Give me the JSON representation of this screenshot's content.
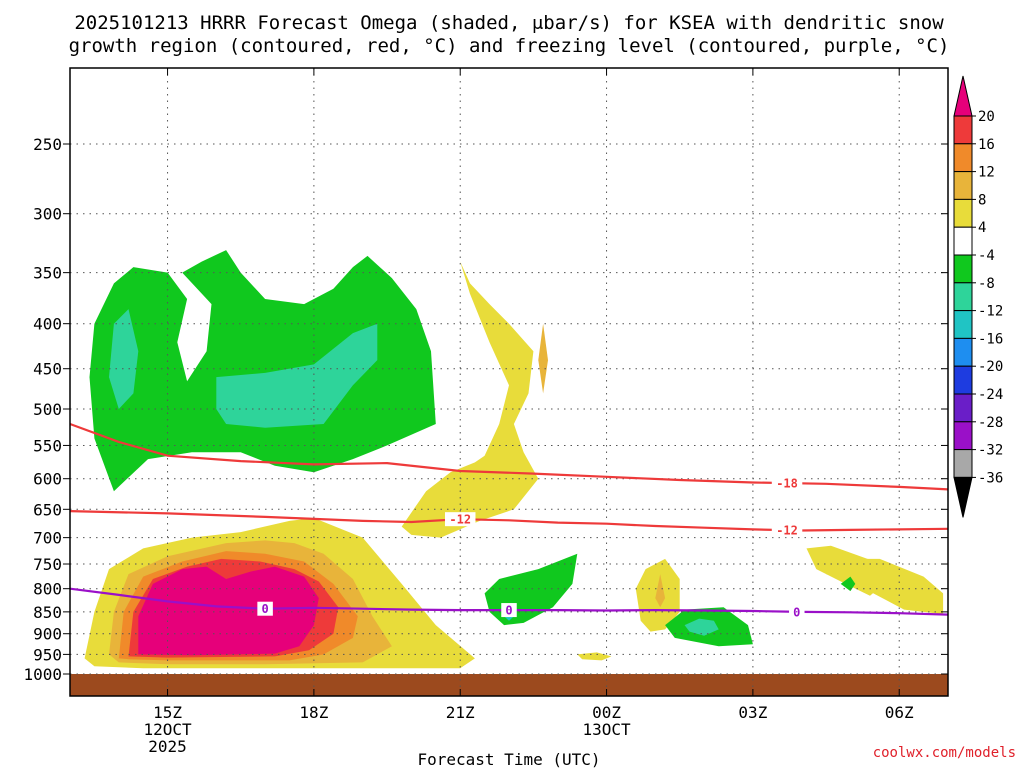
{
  "chart_data": {
    "type": "time-height contour",
    "title_lines": [
      "2025101213 HRRR Forecast Omega (shaded, μbar/s) for KSEA with dendritic snow",
      "growth region (contoured, red, °C) and freezing level (contoured, purple, °C)"
    ],
    "xlabel": "Forecast Time (UTC)",
    "x_ticks": [
      {
        "t": 15,
        "lines": [
          "15Z",
          "12OCT",
          "2025"
        ]
      },
      {
        "t": 18,
        "lines": [
          "18Z"
        ]
      },
      {
        "t": 21,
        "lines": [
          "21Z"
        ]
      },
      {
        "t": 24,
        "lines": [
          "00Z",
          "13OCT"
        ]
      },
      {
        "t": 27,
        "lines": [
          "03Z"
        ]
      },
      {
        "t": 30,
        "lines": [
          "06Z"
        ]
      }
    ],
    "xlim": [
      13.0,
      31.0
    ],
    "y_scale": "log pressure (hPa), inverted",
    "ylim": [
      1000,
      200
    ],
    "y_ticks": [
      250,
      300,
      350,
      400,
      450,
      500,
      550,
      600,
      650,
      700,
      750,
      800,
      850,
      900,
      950,
      1000
    ],
    "colorbar": {
      "label_values": [
        "20",
        "16",
        "12",
        "8",
        "4",
        "-4",
        "-8",
        "-12",
        "-16",
        "-20",
        "-24",
        "-28",
        "-32",
        "-36"
      ],
      "colors": [
        "#e6007a",
        "#ee3a3a",
        "#f08a2a",
        "#e8b43a",
        "#e8dc3a",
        "#ffffff",
        "#10c81e",
        "#2ed49a",
        "#20c4c4",
        "#1e8ef0",
        "#1e3ce0",
        "#6a1ec8",
        "#9a10c8",
        "#a8a8a8",
        "#000000"
      ]
    },
    "shaded_regions": [
      {
        "value": 4,
        "color": "#e8dc3a",
        "polygon": [
          [
            13.3,
            960
          ],
          [
            13.5,
            850
          ],
          [
            13.8,
            760
          ],
          [
            14.5,
            720
          ],
          [
            15.5,
            700
          ],
          [
            16.5,
            690
          ],
          [
            17.5,
            670
          ],
          [
            18.0,
            665
          ],
          [
            19.0,
            700
          ],
          [
            19.8,
            790
          ],
          [
            20.5,
            880
          ],
          [
            21.3,
            960
          ],
          [
            21.0,
            985
          ],
          [
            17.0,
            985
          ],
          [
            14.5,
            985
          ],
          [
            13.5,
            980
          ]
        ]
      },
      {
        "value": 4,
        "color": "#e8dc3a",
        "polygon": [
          [
            19.8,
            680
          ],
          [
            20.3,
            620
          ],
          [
            20.8,
            590
          ],
          [
            21.3,
            575
          ],
          [
            21.5,
            565
          ],
          [
            21.8,
            520
          ],
          [
            22.0,
            470
          ],
          [
            21.6,
            420
          ],
          [
            21.2,
            370
          ],
          [
            21.0,
            340
          ],
          [
            21.2,
            360
          ],
          [
            21.6,
            380
          ],
          [
            22.0,
            400
          ],
          [
            22.5,
            430
          ],
          [
            22.4,
            480
          ],
          [
            22.1,
            520
          ],
          [
            22.3,
            560
          ],
          [
            22.6,
            600
          ],
          [
            22.1,
            650
          ],
          [
            21.4,
            670
          ],
          [
            20.6,
            700
          ],
          [
            20.0,
            695
          ]
        ]
      },
      {
        "value": 4,
        "color": "#e8dc3a",
        "polygon": [
          [
            24.7,
            870
          ],
          [
            24.6,
            800
          ],
          [
            24.8,
            760
          ],
          [
            25.2,
            740
          ],
          [
            25.5,
            780
          ],
          [
            25.5,
            850
          ],
          [
            25.2,
            890
          ],
          [
            24.9,
            895
          ]
        ]
      },
      {
        "value": 4,
        "color": "#e8dc3a",
        "polygon": [
          [
            28.5,
            770
          ],
          [
            29.0,
            740
          ],
          [
            29.6,
            740
          ],
          [
            30.5,
            775
          ],
          [
            30.9,
            810
          ],
          [
            30.9,
            855
          ],
          [
            30.1,
            845
          ],
          [
            29.1,
            790
          ]
        ]
      },
      {
        "value": 4,
        "color": "#e8dc3a",
        "polygon": [
          [
            28.3,
            760
          ],
          [
            28.1,
            720
          ],
          [
            28.6,
            715
          ],
          [
            29.5,
            745
          ],
          [
            29.8,
            780
          ],
          [
            29.4,
            815
          ],
          [
            28.9,
            790
          ]
        ]
      },
      {
        "value": 4,
        "color": "#e8dc3a",
        "polygon": [
          [
            23.4,
            950
          ],
          [
            23.8,
            945
          ],
          [
            24.1,
            955
          ],
          [
            23.9,
            965
          ],
          [
            23.5,
            962
          ]
        ]
      },
      {
        "value": 8,
        "color": "#e8b43a",
        "polygon": [
          [
            13.8,
            950
          ],
          [
            13.9,
            850
          ],
          [
            14.2,
            770
          ],
          [
            15.0,
            735
          ],
          [
            16.2,
            710
          ],
          [
            17.0,
            705
          ],
          [
            17.6,
            710
          ],
          [
            18.2,
            730
          ],
          [
            18.8,
            780
          ],
          [
            19.2,
            860
          ],
          [
            19.6,
            930
          ],
          [
            19.0,
            970
          ],
          [
            17.0,
            975
          ],
          [
            15.0,
            975
          ],
          [
            14.0,
            970
          ]
        ]
      },
      {
        "value": 8,
        "color": "#e8b43a",
        "polygon": [
          [
            22.6,
            440
          ],
          [
            22.7,
            400
          ],
          [
            22.8,
            440
          ],
          [
            22.7,
            480
          ]
        ]
      },
      {
        "value": 8,
        "color": "#e8b43a",
        "polygon": [
          [
            25.0,
            820
          ],
          [
            25.1,
            770
          ],
          [
            25.2,
            820
          ],
          [
            25.1,
            840
          ]
        ]
      },
      {
        "value": 12,
        "color": "#f08a2a",
        "polygon": [
          [
            14.0,
            960
          ],
          [
            14.1,
            850
          ],
          [
            14.5,
            775
          ],
          [
            15.3,
            745
          ],
          [
            16.2,
            725
          ],
          [
            17.0,
            730
          ],
          [
            17.8,
            745
          ],
          [
            18.4,
            790
          ],
          [
            18.9,
            860
          ],
          [
            18.8,
            910
          ],
          [
            18.2,
            950
          ],
          [
            17.5,
            965
          ],
          [
            15.0,
            965
          ],
          [
            14.2,
            962
          ]
        ]
      },
      {
        "value": 16,
        "color": "#ee3a3a",
        "polygon": [
          [
            14.2,
            955
          ],
          [
            14.3,
            850
          ],
          [
            14.7,
            780
          ],
          [
            15.4,
            755
          ],
          [
            16.1,
            740
          ],
          [
            16.9,
            745
          ],
          [
            17.6,
            760
          ],
          [
            18.1,
            785
          ],
          [
            18.5,
            840
          ],
          [
            18.4,
            900
          ],
          [
            17.9,
            940
          ],
          [
            17.2,
            955
          ],
          [
            15.0,
            958
          ]
        ]
      },
      {
        "value": 20,
        "color": "#e6007a",
        "polygon": [
          [
            14.4,
            950
          ],
          [
            14.4,
            860
          ],
          [
            14.7,
            790
          ],
          [
            15.3,
            760
          ],
          [
            15.8,
            755
          ],
          [
            16.2,
            780
          ],
          [
            16.7,
            765
          ],
          [
            17.2,
            755
          ],
          [
            17.8,
            775
          ],
          [
            18.1,
            820
          ],
          [
            18.0,
            880
          ],
          [
            17.7,
            930
          ],
          [
            17.2,
            948
          ],
          [
            15.5,
            952
          ]
        ]
      },
      {
        "value": -4,
        "color": "#10c81e",
        "polygon": [
          [
            13.9,
            620
          ],
          [
            13.5,
            540
          ],
          [
            13.4,
            460
          ],
          [
            13.5,
            400
          ],
          [
            13.9,
            360
          ],
          [
            14.3,
            345
          ],
          [
            15.0,
            350
          ],
          [
            15.4,
            375
          ],
          [
            15.2,
            420
          ],
          [
            15.4,
            465
          ],
          [
            15.8,
            430
          ],
          [
            15.9,
            380
          ],
          [
            15.3,
            350
          ],
          [
            15.7,
            340
          ],
          [
            16.2,
            330
          ],
          [
            16.5,
            350
          ],
          [
            17.0,
            375
          ],
          [
            17.8,
            380
          ],
          [
            18.4,
            365
          ],
          [
            18.8,
            345
          ],
          [
            19.1,
            335
          ],
          [
            19.6,
            355
          ],
          [
            20.1,
            385
          ],
          [
            20.4,
            430
          ],
          [
            20.5,
            520
          ],
          [
            19.5,
            550
          ],
          [
            18.8,
            570
          ],
          [
            18.0,
            590
          ],
          [
            17.2,
            580
          ],
          [
            16.5,
            560
          ],
          [
            15.5,
            560
          ],
          [
            14.6,
            570
          ]
        ]
      },
      {
        "value": -4,
        "color": "#10c81e",
        "polygon": [
          [
            21.6,
            850
          ],
          [
            21.5,
            810
          ],
          [
            21.8,
            780
          ],
          [
            22.6,
            760
          ],
          [
            23.4,
            730
          ],
          [
            23.3,
            790
          ],
          [
            22.9,
            840
          ],
          [
            22.3,
            875
          ],
          [
            21.9,
            880
          ]
        ]
      },
      {
        "value": -4,
        "color": "#10c81e",
        "polygon": [
          [
            25.2,
            880
          ],
          [
            25.6,
            845
          ],
          [
            26.4,
            840
          ],
          [
            26.9,
            880
          ],
          [
            27.0,
            925
          ],
          [
            26.3,
            930
          ],
          [
            25.4,
            910
          ]
        ]
      },
      {
        "value": -4,
        "color": "#10c81e",
        "polygon": [
          [
            28.8,
            790
          ],
          [
            29.0,
            775
          ],
          [
            29.1,
            790
          ],
          [
            29.0,
            805
          ]
        ]
      },
      {
        "value": -8,
        "color": "#2ed49a",
        "polygon": [
          [
            13.8,
            460
          ],
          [
            13.9,
            400
          ],
          [
            14.2,
            385
          ],
          [
            14.4,
            430
          ],
          [
            14.3,
            480
          ],
          [
            14.0,
            500
          ]
        ]
      },
      {
        "value": -8,
        "color": "#2ed49a",
        "polygon": [
          [
            16.0,
            500
          ],
          [
            16.0,
            460
          ],
          [
            17.0,
            455
          ],
          [
            18.0,
            445
          ],
          [
            18.8,
            410
          ],
          [
            19.3,
            400
          ],
          [
            19.3,
            440
          ],
          [
            18.8,
            470
          ],
          [
            18.2,
            520
          ],
          [
            17.0,
            525
          ],
          [
            16.2,
            520
          ]
        ]
      },
      {
        "value": -8,
        "color": "#2ed49a",
        "polygon": [
          [
            25.6,
            880
          ],
          [
            25.9,
            865
          ],
          [
            26.2,
            870
          ],
          [
            26.3,
            890
          ],
          [
            26.0,
            905
          ],
          [
            25.7,
            895
          ]
        ]
      },
      {
        "value": -12,
        "color": "#20c4c4",
        "polygon": [
          [
            21.9,
            860
          ],
          [
            22.0,
            850
          ],
          [
            22.1,
            860
          ],
          [
            22.0,
            870
          ]
        ]
      }
    ],
    "contours": [
      {
        "name": "DGZ -18 °C",
        "color": "#ee3a3a",
        "label": "-18",
        "label_at_t": 27.7,
        "points": [
          [
            13.0,
            520
          ],
          [
            14.0,
            545
          ],
          [
            15.0,
            565
          ],
          [
            16.5,
            573
          ],
          [
            18.0,
            578
          ],
          [
            19.5,
            576
          ],
          [
            21.0,
            588
          ],
          [
            22.5,
            592
          ],
          [
            24.0,
            597
          ],
          [
            25.5,
            602
          ],
          [
            27.0,
            606
          ],
          [
            28.5,
            608
          ],
          [
            30.0,
            613
          ],
          [
            31.0,
            617
          ]
        ]
      },
      {
        "name": "DGZ -12 °C",
        "color": "#ee3a3a",
        "label": "-12",
        "label_at_t": 21.0,
        "label2_at_t": 27.7,
        "points": [
          [
            13.0,
            653
          ],
          [
            15.0,
            657
          ],
          [
            17.0,
            663
          ],
          [
            19.0,
            670
          ],
          [
            20.0,
            672
          ],
          [
            21.0,
            667
          ],
          [
            22.0,
            669
          ],
          [
            23.0,
            673
          ],
          [
            24.0,
            675
          ],
          [
            25.0,
            679
          ],
          [
            26.0,
            682
          ],
          [
            27.0,
            685
          ],
          [
            28.0,
            687
          ],
          [
            29.0,
            686
          ],
          [
            31.0,
            684
          ]
        ]
      },
      {
        "name": "Freezing level 0 °C",
        "color": "#9a10c8",
        "label": "0",
        "label_at_t": 17.0,
        "label2_at_t": 22.0,
        "label3_at_t": 27.9,
        "points": [
          [
            13.0,
            800
          ],
          [
            14.0,
            813
          ],
          [
            15.0,
            827
          ],
          [
            16.0,
            838
          ],
          [
            17.0,
            843
          ],
          [
            18.0,
            841
          ],
          [
            19.0,
            843
          ],
          [
            20.0,
            845
          ],
          [
            21.0,
            846
          ],
          [
            22.0,
            846
          ],
          [
            23.0,
            846
          ],
          [
            24.0,
            847
          ],
          [
            25.0,
            846
          ],
          [
            26.0,
            847
          ],
          [
            27.0,
            848
          ],
          [
            28.0,
            850
          ],
          [
            29.0,
            851
          ],
          [
            30.0,
            853
          ],
          [
            31.0,
            856
          ]
        ]
      }
    ]
  },
  "credit": "coolwx.com/models"
}
